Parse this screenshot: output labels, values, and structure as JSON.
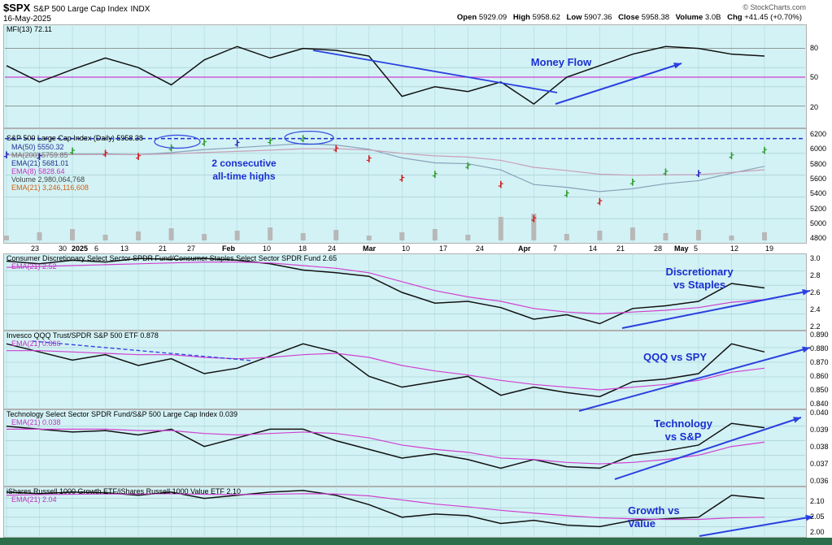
{
  "header": {
    "symbol": "$SPX",
    "symbol_name": "S&P 500 Large Cap Index",
    "exchange": "INDX",
    "date": "16-May-2025",
    "source": "© StockCharts.com",
    "open_label": "Open",
    "open": "5929.09",
    "high_label": "High",
    "high": "5958.62",
    "low_label": "Low",
    "low": "5907.36",
    "close_label": "Close",
    "close": "5958.38",
    "volume_label": "Volume",
    "volume": "3.0B",
    "chg_label": "Chg",
    "chg": "+41.45 (+0.70%)"
  },
  "panels": {
    "mfi": {
      "label": "MFI(13) 72.11",
      "ticks": [
        "80",
        "50",
        "20"
      ]
    },
    "price": {
      "label": "S&P 500 Large Cap Index (Daily) 5958.38",
      "legend": [
        "MA(50) 5550.32",
        "MA(200) 5759.85",
        "EMA(21) 5681.01",
        "EMA(8) 5828.64",
        "Volume 2,980,064,768",
        "EMA(21) 3,246,116,608"
      ],
      "ticks": [
        "6200",
        "6000",
        "5800",
        "5600",
        "5400",
        "5200",
        "5000",
        "4800"
      ]
    },
    "xlv": {
      "label": "Consumer Discretionary Select Sector SPDR Fund/Consumer Staples Select Sector SPDR Fund 2.65",
      "ema": "EMA(21) 2.52",
      "ticks": [
        "3.0",
        "2.8",
        "2.6",
        "2.4",
        "2.2"
      ]
    },
    "qqq": {
      "label": "Invesco QQQ Trust/SPDR S&P 500 ETF 0.878",
      "ema": "EMA(21) 0.866",
      "ticks": [
        "0.890",
        "0.880",
        "0.870",
        "0.860",
        "0.850",
        "0.840"
      ]
    },
    "xlk": {
      "label": "Technology Select Sector SPDR Fund/S&P 500 Large Cap Index 0.039",
      "ema": "EMA(21) 0.038",
      "ticks": [
        "0.040",
        "0.039",
        "0.038",
        "0.037",
        "0.036"
      ]
    },
    "iwf": {
      "label": "iShares Russell 1000 Growth ETF/iShares Russell 1000 Value ETF 2.10",
      "ema": "EMA(21) 2.04",
      "ticks": [
        "2.10",
        "2.05",
        "2.00"
      ]
    }
  },
  "xaxis": [
    "23",
    "30",
    "2025",
    "6",
    "13",
    "21",
    "27",
    "Feb",
    "10",
    "18",
    "24",
    "Mar",
    "10",
    "17",
    "24",
    "Apr",
    "7",
    "14",
    "21",
    "28",
    "May",
    "5",
    "12",
    "19"
  ],
  "annotations": {
    "money_flow": "Money Flow",
    "highs_line1": "2 consecutive",
    "highs_line2": "all-time highs",
    "disc_line1": "Discretionary",
    "disc_line2": "vs Staples",
    "qqq": "QQQ vs SPY",
    "tech_line1": "Technology",
    "tech_line2": "vs S&P",
    "growth_line1": "Growth vs",
    "growth_line2": "Value"
  },
  "colors": {
    "panel_bg": "#d3f2f5",
    "annotation": "#1a2fd0",
    "ema": "#d040d0",
    "up": "#2a9a2a",
    "down": "#d01818",
    "flat": "#2020c0"
  },
  "chart_data": [
    {
      "type": "line",
      "title": "MFI(13) 72.11",
      "ylim": [
        0,
        100
      ],
      "x": [
        "23",
        "30",
        "2025",
        "6",
        "13",
        "21",
        "27",
        "Feb",
        "10",
        "18",
        "24",
        "Mar",
        "10",
        "17",
        "24",
        "Apr",
        "7",
        "14",
        "21",
        "28",
        "May",
        "5",
        "12",
        "19"
      ],
      "series": [
        {
          "name": "MFI(13)",
          "values": [
            62,
            45,
            58,
            70,
            60,
            42,
            68,
            82,
            70,
            80,
            78,
            72,
            30,
            40,
            35,
            45,
            22,
            50,
            62,
            74,
            82,
            80,
            74,
            72
          ]
        }
      ]
    },
    {
      "type": "line",
      "title": "S&P 500 Large Cap Index (Daily) 5958.38",
      "ylim": [
        4800,
        6200
      ],
      "x": [
        "23",
        "30",
        "2025",
        "6",
        "13",
        "21",
        "27",
        "Feb",
        "10",
        "18",
        "24",
        "Mar",
        "10",
        "17",
        "24",
        "Apr",
        "7",
        "14",
        "21",
        "28",
        "May",
        "5",
        "12",
        "19"
      ],
      "series": [
        {
          "name": "S&P 500 Large Cap Index (Daily)",
          "values": [
            5900,
            5880,
            5950,
            5920,
            5880,
            5990,
            6060,
            6050,
            6080,
            6110,
            5980,
            5850,
            5600,
            5650,
            5760,
            5520,
            5080,
            5400,
            5300,
            5550,
            5680,
            5660,
            5890,
            5958
          ]
        }
      ]
    },
    {
      "type": "line",
      "title": "Consumer Discretionary Select Sector SPDR Fund/Consumer Staples Select Sector SPDR Fund 2.65",
      "ylim": [
        2.2,
        3.0
      ],
      "x": [
        "23",
        "30",
        "2025",
        "6",
        "13",
        "21",
        "27",
        "Feb",
        "10",
        "18",
        "24",
        "Mar",
        "10",
        "17",
        "24",
        "Apr",
        "7",
        "14",
        "21",
        "28",
        "May",
        "5",
        "12",
        "19"
      ],
      "series": [
        {
          "name": "Consumer Discretionary Select Sector SPDR Fund/Consumer Staples Select Sector SPDR Fund",
          "values": [
            2.95,
            2.92,
            2.96,
            2.94,
            2.98,
            2.97,
            2.98,
            2.96,
            2.92,
            2.85,
            2.82,
            2.78,
            2.6,
            2.48,
            2.5,
            2.43,
            2.3,
            2.35,
            2.25,
            2.42,
            2.45,
            2.5,
            2.7,
            2.65
          ]
        },
        {
          "name": "EMA(21)",
          "values": [
            2.88,
            2.89,
            2.9,
            2.91,
            2.92,
            2.93,
            2.94,
            2.94,
            2.93,
            2.9,
            2.87,
            2.82,
            2.72,
            2.62,
            2.55,
            2.5,
            2.42,
            2.38,
            2.36,
            2.38,
            2.4,
            2.43,
            2.49,
            2.52
          ]
        }
      ]
    },
    {
      "type": "line",
      "title": "Invesco QQQ Trust/SPDR S&P 500 ETF 0.878",
      "ylim": [
        0.838,
        0.892
      ],
      "x": [
        "23",
        "30",
        "2025",
        "6",
        "13",
        "21",
        "27",
        "Feb",
        "10",
        "18",
        "24",
        "Mar",
        "10",
        "17",
        "24",
        "Apr",
        "7",
        "14",
        "21",
        "28",
        "May",
        "5",
        "12",
        "19"
      ],
      "series": [
        {
          "name": "Invesco QQQ Trust/SPDR S&P 500 ETF",
          "values": [
            0.884,
            0.878,
            0.872,
            0.876,
            0.868,
            0.873,
            0.862,
            0.866,
            0.875,
            0.884,
            0.878,
            0.86,
            0.852,
            0.856,
            0.86,
            0.846,
            0.852,
            0.848,
            0.845,
            0.856,
            0.858,
            0.862,
            0.884,
            0.878
          ]
        },
        {
          "name": "EMA(21)",
          "values": [
            0.879,
            0.879,
            0.878,
            0.877,
            0.876,
            0.876,
            0.874,
            0.873,
            0.874,
            0.876,
            0.877,
            0.874,
            0.868,
            0.864,
            0.861,
            0.857,
            0.854,
            0.852,
            0.85,
            0.852,
            0.854,
            0.857,
            0.863,
            0.866
          ]
        }
      ]
    },
    {
      "type": "line",
      "title": "Technology Select Sector SPDR Fund/S&P 500 Large Cap Index 0.039",
      "ylim": [
        0.0355,
        0.0405
      ],
      "x": [
        "23",
        "30",
        "2025",
        "6",
        "13",
        "21",
        "27",
        "Feb",
        "10",
        "18",
        "24",
        "Mar",
        "10",
        "17",
        "24",
        "Apr",
        "7",
        "14",
        "21",
        "28",
        "May",
        "5",
        "12",
        "19"
      ],
      "series": [
        {
          "name": "Technology Select Sector SPDR Fund/S&P 500 Large Cap Index",
          "values": [
            0.0395,
            0.0393,
            0.0391,
            0.0392,
            0.0389,
            0.0393,
            0.0381,
            0.0387,
            0.0393,
            0.0393,
            0.0385,
            0.0379,
            0.0373,
            0.0376,
            0.0372,
            0.0366,
            0.0372,
            0.0367,
            0.0366,
            0.0375,
            0.0378,
            0.0382,
            0.0397,
            0.0394
          ]
        },
        {
          "name": "EMA(21)",
          "values": [
            0.0393,
            0.0393,
            0.0393,
            0.0393,
            0.0392,
            0.0392,
            0.039,
            0.0389,
            0.039,
            0.0391,
            0.039,
            0.0387,
            0.0382,
            0.0379,
            0.0377,
            0.0373,
            0.0372,
            0.037,
            0.0369,
            0.037,
            0.0372,
            0.0375,
            0.0381,
            0.0384
          ]
        }
      ]
    },
    {
      "type": "line",
      "title": "iShares Russell 1000 Growth ETF/iShares Russell 1000 Value ETF 2.10",
      "ylim": [
        1.98,
        2.13
      ],
      "x": [
        "23",
        "30",
        "2025",
        "6",
        "13",
        "21",
        "27",
        "Feb",
        "10",
        "18",
        "24",
        "Mar",
        "10",
        "17",
        "24",
        "Apr",
        "7",
        "14",
        "21",
        "28",
        "May",
        "5",
        "12",
        "19"
      ],
      "series": [
        {
          "name": "iShares Russell 1000 Growth ETF/iShares Russell 1000 Value ETF",
          "values": [
            2.12,
            2.115,
            2.12,
            2.118,
            2.11,
            2.12,
            2.1,
            2.11,
            2.12,
            2.125,
            2.11,
            2.08,
            2.04,
            2.05,
            2.045,
            2.02,
            2.03,
            2.015,
            2.01,
            2.03,
            2.035,
            2.04,
            2.11,
            2.1
          ]
        },
        {
          "name": "EMA(21)",
          "values": [
            2.11,
            2.112,
            2.113,
            2.114,
            2.114,
            2.115,
            2.113,
            2.112,
            2.113,
            2.115,
            2.114,
            2.108,
            2.095,
            2.082,
            2.073,
            2.062,
            2.053,
            2.045,
            2.038,
            2.035,
            2.033,
            2.033,
            2.038,
            2.04
          ]
        }
      ]
    }
  ]
}
